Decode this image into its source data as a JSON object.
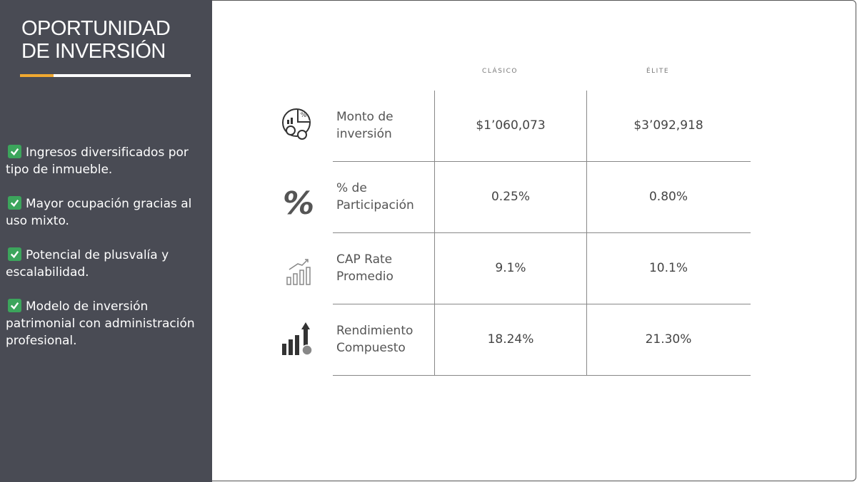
{
  "sidebar": {
    "title_lines": [
      "OPORTUNIDAD",
      "DE INVERSIÓN"
    ],
    "bullets": [
      "Ingresos diversificados por tipo de inmueble.",
      "Mayor ocupación gracias al uso mixto.",
      "Potencial de plusvalía y escalabilidad.",
      "Modelo de inversión patrimonial con administración profesional."
    ]
  },
  "table": {
    "columns": [
      "CLÁSICO",
      "ÉLITE"
    ],
    "rows": [
      {
        "label": "Monto de inversión",
        "values": [
          "$1’060,073",
          "$3’092,918"
        ]
      },
      {
        "label": "% de Participación",
        "values": [
          "0.25%",
          "0.80%"
        ]
      },
      {
        "label": "CAP Rate Promedio",
        "values": [
          "9.1%",
          "10.1%"
        ]
      },
      {
        "label": "Rendimiento Compuesto",
        "values": [
          "18.24%",
          "21.30%"
        ]
      }
    ]
  }
}
